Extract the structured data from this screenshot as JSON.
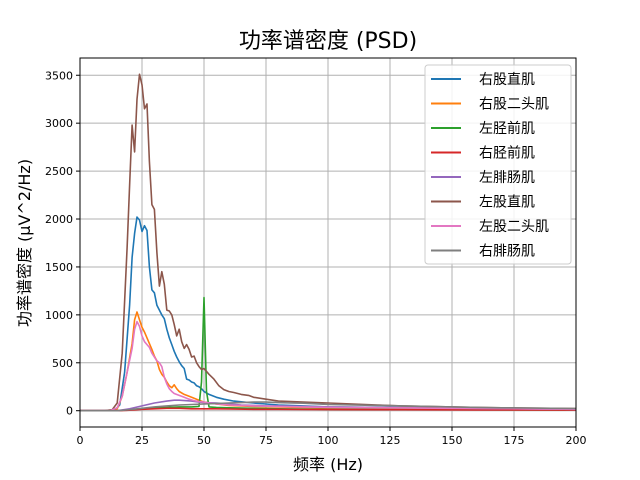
{
  "chart_data": {
    "type": "line",
    "title": "功率谱密度 (PSD)",
    "xlabel": "频率 (Hz)",
    "ylabel": "功率谱密度 (μV^2/Hz)",
    "xlim": [
      0,
      200
    ],
    "ylim": [
      -170,
      3680
    ],
    "xticks": [
      0,
      25,
      50,
      75,
      100,
      125,
      150,
      175,
      200
    ],
    "yticks": [
      0,
      500,
      1000,
      1500,
      2000,
      2500,
      3000,
      3500
    ],
    "grid": true,
    "legend_position": "top-right",
    "series": [
      {
        "name": "右股直肌",
        "color": "#1f77b4",
        "points": [
          [
            0,
            0
          ],
          [
            10,
            0
          ],
          [
            14,
            5
          ],
          [
            16,
            60
          ],
          [
            18,
            400
          ],
          [
            20,
            1100
          ],
          [
            21,
            1600
          ],
          [
            22,
            1850
          ],
          [
            23,
            2020
          ],
          [
            24,
            1990
          ],
          [
            25,
            1870
          ],
          [
            26,
            1930
          ],
          [
            27,
            1880
          ],
          [
            28,
            1500
          ],
          [
            29,
            1260
          ],
          [
            30,
            1230
          ],
          [
            31,
            1100
          ],
          [
            32,
            1050
          ],
          [
            33,
            1000
          ],
          [
            34,
            960
          ],
          [
            35,
            850
          ],
          [
            36,
            760
          ],
          [
            37,
            690
          ],
          [
            38,
            620
          ],
          [
            39,
            560
          ],
          [
            40,
            510
          ],
          [
            41,
            470
          ],
          [
            42,
            440
          ],
          [
            43,
            330
          ],
          [
            44,
            320
          ],
          [
            45,
            300
          ],
          [
            46,
            290
          ],
          [
            47,
            260
          ],
          [
            48,
            250
          ],
          [
            49,
            230
          ],
          [
            50,
            200
          ],
          [
            52,
            170
          ],
          [
            55,
            140
          ],
          [
            58,
            120
          ],
          [
            62,
            100
          ],
          [
            66,
            90
          ],
          [
            70,
            80
          ],
          [
            75,
            70
          ],
          [
            80,
            60
          ],
          [
            90,
            50
          ],
          [
            100,
            40
          ],
          [
            120,
            35
          ],
          [
            140,
            30
          ],
          [
            160,
            25
          ],
          [
            180,
            20
          ],
          [
            200,
            15
          ]
        ]
      },
      {
        "name": "右股二头肌",
        "color": "#ff7f0e",
        "points": [
          [
            0,
            0
          ],
          [
            12,
            0
          ],
          [
            15,
            20
          ],
          [
            17,
            150
          ],
          [
            19,
            400
          ],
          [
            21,
            700
          ],
          [
            22,
            950
          ],
          [
            23,
            1030
          ],
          [
            24,
            950
          ],
          [
            25,
            870
          ],
          [
            26,
            820
          ],
          [
            27,
            760
          ],
          [
            28,
            700
          ],
          [
            29,
            640
          ],
          [
            30,
            570
          ],
          [
            31,
            520
          ],
          [
            32,
            430
          ],
          [
            33,
            380
          ],
          [
            34,
            350
          ],
          [
            35,
            300
          ],
          [
            36,
            260
          ],
          [
            37,
            240
          ],
          [
            38,
            270
          ],
          [
            39,
            230
          ],
          [
            40,
            200
          ],
          [
            42,
            170
          ],
          [
            44,
            150
          ],
          [
            46,
            130
          ],
          [
            48,
            110
          ],
          [
            50,
            90
          ],
          [
            55,
            70
          ],
          [
            60,
            55
          ],
          [
            70,
            45
          ],
          [
            80,
            40
          ],
          [
            100,
            30
          ],
          [
            120,
            25
          ],
          [
            150,
            20
          ],
          [
            200,
            10
          ]
        ]
      },
      {
        "name": "左胫前肌",
        "color": "#2ca02c",
        "points": [
          [
            0,
            0
          ],
          [
            15,
            0
          ],
          [
            20,
            10
          ],
          [
            25,
            20
          ],
          [
            30,
            30
          ],
          [
            35,
            35
          ],
          [
            40,
            40
          ],
          [
            45,
            40
          ],
          [
            48,
            45
          ],
          [
            49,
            300
          ],
          [
            50,
            1180
          ],
          [
            51,
            200
          ],
          [
            52,
            40
          ],
          [
            55,
            35
          ],
          [
            60,
            30
          ],
          [
            70,
            25
          ],
          [
            80,
            20
          ],
          [
            100,
            15
          ],
          [
            130,
            12
          ],
          [
            160,
            10
          ],
          [
            200,
            8
          ]
        ]
      },
      {
        "name": "右胫前肌",
        "color": "#d62728",
        "points": [
          [
            0,
            0
          ],
          [
            15,
            0
          ],
          [
            20,
            5
          ],
          [
            25,
            15
          ],
          [
            30,
            20
          ],
          [
            35,
            25
          ],
          [
            40,
            25
          ],
          [
            45,
            20
          ],
          [
            50,
            20
          ],
          [
            55,
            20
          ],
          [
            60,
            18
          ],
          [
            70,
            15
          ],
          [
            80,
            15
          ],
          [
            100,
            12
          ],
          [
            130,
            10
          ],
          [
            160,
            8
          ],
          [
            200,
            6
          ]
        ]
      },
      {
        "name": "左腓肠肌",
        "color": "#9467bd",
        "points": [
          [
            0,
            0
          ],
          [
            15,
            0
          ],
          [
            20,
            20
          ],
          [
            25,
            50
          ],
          [
            30,
            80
          ],
          [
            35,
            100
          ],
          [
            38,
            110
          ],
          [
            40,
            110
          ],
          [
            45,
            100
          ],
          [
            48,
            90
          ],
          [
            50,
            85
          ],
          [
            55,
            80
          ],
          [
            60,
            70
          ],
          [
            65,
            60
          ],
          [
            70,
            55
          ],
          [
            75,
            50
          ],
          [
            80,
            50
          ],
          [
            90,
            45
          ],
          [
            100,
            40
          ],
          [
            120,
            35
          ],
          [
            140,
            30
          ],
          [
            160,
            25
          ],
          [
            180,
            20
          ],
          [
            200,
            15
          ]
        ]
      },
      {
        "name": "左股直肌",
        "color": "#8c564b",
        "points": [
          [
            0,
            0
          ],
          [
            10,
            0
          ],
          [
            13,
            10
          ],
          [
            15,
            80
          ],
          [
            17,
            600
          ],
          [
            19,
            1700
          ],
          [
            20,
            2350
          ],
          [
            21,
            2980
          ],
          [
            22,
            2700
          ],
          [
            23,
            3250
          ],
          [
            24,
            3510
          ],
          [
            25,
            3400
          ],
          [
            26,
            3150
          ],
          [
            27,
            3200
          ],
          [
            28,
            2600
          ],
          [
            29,
            2150
          ],
          [
            30,
            2100
          ],
          [
            31,
            1650
          ],
          [
            32,
            1300
          ],
          [
            33,
            1450
          ],
          [
            34,
            1320
          ],
          [
            35,
            1050
          ],
          [
            36,
            1040
          ],
          [
            37,
            1000
          ],
          [
            38,
            900
          ],
          [
            39,
            780
          ],
          [
            40,
            850
          ],
          [
            41,
            720
          ],
          [
            42,
            650
          ],
          [
            43,
            690
          ],
          [
            44,
            640
          ],
          [
            45,
            560
          ],
          [
            46,
            570
          ],
          [
            47,
            500
          ],
          [
            48,
            460
          ],
          [
            49,
            430
          ],
          [
            50,
            440
          ],
          [
            52,
            380
          ],
          [
            54,
            330
          ],
          [
            56,
            260
          ],
          [
            58,
            220
          ],
          [
            60,
            200
          ],
          [
            62,
            190
          ],
          [
            65,
            170
          ],
          [
            68,
            160
          ],
          [
            70,
            140
          ],
          [
            75,
            120
          ],
          [
            80,
            100
          ],
          [
            90,
            90
          ],
          [
            100,
            80
          ],
          [
            110,
            70
          ],
          [
            120,
            60
          ],
          [
            130,
            50
          ],
          [
            140,
            45
          ],
          [
            150,
            40
          ],
          [
            160,
            35
          ],
          [
            170,
            30
          ],
          [
            180,
            28
          ],
          [
            190,
            25
          ],
          [
            200,
            22
          ]
        ]
      },
      {
        "name": "左股二头肌",
        "color": "#e377c2",
        "points": [
          [
            0,
            0
          ],
          [
            12,
            0
          ],
          [
            15,
            30
          ],
          [
            17,
            150
          ],
          [
            19,
            400
          ],
          [
            21,
            650
          ],
          [
            22,
            850
          ],
          [
            23,
            930
          ],
          [
            24,
            880
          ],
          [
            25,
            780
          ],
          [
            26,
            720
          ],
          [
            27,
            690
          ],
          [
            28,
            660
          ],
          [
            29,
            600
          ],
          [
            30,
            560
          ],
          [
            31,
            520
          ],
          [
            32,
            500
          ],
          [
            33,
            460
          ],
          [
            34,
            350
          ],
          [
            35,
            280
          ],
          [
            36,
            230
          ],
          [
            37,
            200
          ],
          [
            38,
            180
          ],
          [
            40,
            160
          ],
          [
            42,
            140
          ],
          [
            44,
            120
          ],
          [
            46,
            105
          ],
          [
            48,
            95
          ],
          [
            50,
            90
          ],
          [
            52,
            80
          ],
          [
            55,
            70
          ],
          [
            60,
            60
          ],
          [
            70,
            50
          ],
          [
            80,
            45
          ],
          [
            100,
            35
          ],
          [
            120,
            30
          ],
          [
            150,
            25
          ],
          [
            200,
            15
          ]
        ]
      },
      {
        "name": "右腓肠肌",
        "color": "#7f7f7f",
        "points": [
          [
            0,
            0
          ],
          [
            15,
            0
          ],
          [
            20,
            10
          ],
          [
            25,
            25
          ],
          [
            30,
            40
          ],
          [
            35,
            50
          ],
          [
            40,
            60
          ],
          [
            45,
            65
          ],
          [
            50,
            70
          ],
          [
            55,
            75
          ],
          [
            60,
            80
          ],
          [
            65,
            85
          ],
          [
            70,
            90
          ],
          [
            75,
            90
          ],
          [
            80,
            85
          ],
          [
            85,
            80
          ],
          [
            90,
            78
          ],
          [
            95,
            72
          ],
          [
            100,
            65
          ],
          [
            110,
            60
          ],
          [
            120,
            55
          ],
          [
            130,
            50
          ],
          [
            140,
            45
          ],
          [
            150,
            40
          ],
          [
            160,
            35
          ],
          [
            170,
            30
          ],
          [
            180,
            28
          ],
          [
            190,
            25
          ],
          [
            200,
            22
          ]
        ]
      }
    ]
  }
}
